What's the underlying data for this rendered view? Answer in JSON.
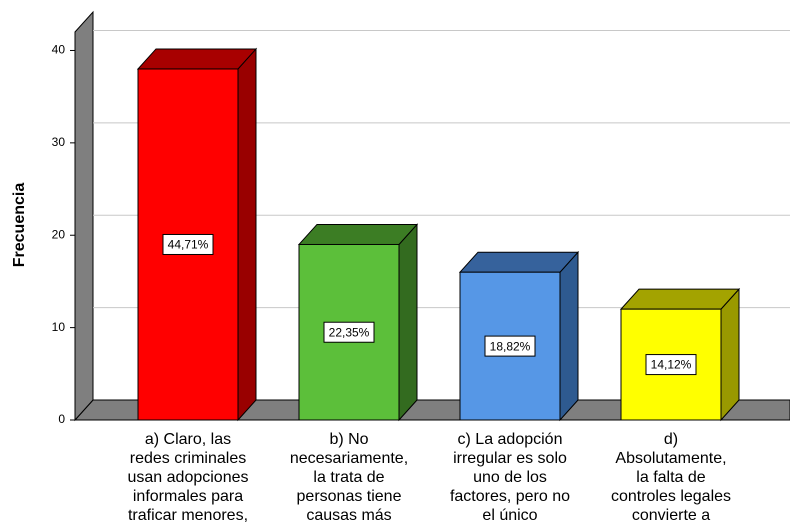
{
  "chart_data": {
    "type": "bar3d",
    "y_label": "Frecuencia",
    "categories": [
      "a) Claro, las\nredes criminales\nusan adopciones\ninformales para\ntraficar menores,",
      "b) No\nnecesariamente,\nla trata de\npersonas tiene\ncausas más",
      "c) La adopción\nirregular es solo\nuno de los\nfactores, pero no\nel único",
      "d)\nAbsolutamente,\nla falta de\ncontroles legales\nconvierte a"
    ],
    "values": [
      38,
      19,
      16,
      12
    ],
    "percent_labels": [
      "44,71%",
      "22,35%",
      "18,82%",
      "14,12%"
    ],
    "colors": [
      "#ff0000",
      "#5cbf3a",
      "#5697e6",
      "#ffff00"
    ],
    "side_colors": [
      "#990000",
      "#336b1f",
      "#2e5a90",
      "#999900"
    ],
    "top_colors": [
      "#a80000",
      "#3c7d24",
      "#36629c",
      "#a3a300"
    ],
    "ylim": [
      0,
      42
    ],
    "yticks": [
      0,
      10,
      20,
      30,
      40
    ],
    "grid": true
  }
}
